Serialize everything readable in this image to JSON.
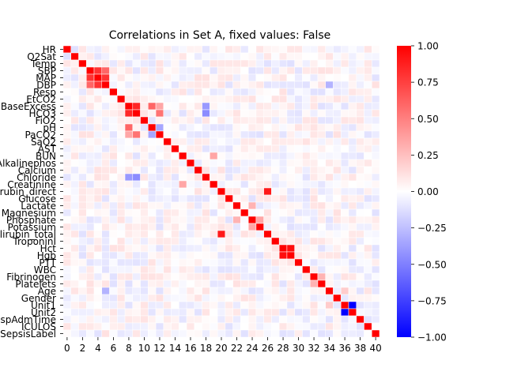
{
  "chart_data": {
    "type": "heatmap",
    "title": "Correlations in Set A, fixed values: False",
    "row_labels": [
      "HR",
      "O2Sat",
      "Temp",
      "SBP",
      "MAP",
      "DBP",
      "Resp",
      "EtCO2",
      "BaseExcess",
      "HCO3",
      "FiO2",
      "pH",
      "PaCO2",
      "SaO2",
      "AST",
      "BUN",
      "Alkalinephos",
      "Calcium",
      "Chloride",
      "Creatinine",
      "Bilirubin_direct",
      "Glucose",
      "Lactate",
      "Magnesium",
      "Phosphate",
      "Potassium",
      "Bilirubin_total",
      "TroponinI",
      "Hct",
      "Hgb",
      "PTT",
      "WBC",
      "Fibrinogen",
      "Platelets",
      "Age",
      "Gender",
      "Unit1",
      "Unit2",
      "HospAdmTime",
      "ICULOS",
      "SepsisLabel"
    ],
    "x_tick_labels": [
      "0",
      "2",
      "4",
      "6",
      "8",
      "10",
      "12",
      "14",
      "16",
      "18",
      "20",
      "22",
      "24",
      "26",
      "28",
      "30",
      "32",
      "34",
      "36",
      "38",
      "40"
    ],
    "colorbar_ticks": [
      "1.00",
      "0.75",
      "0.50",
      "0.25",
      "0.00",
      "−0.25",
      "−0.50",
      "−0.75",
      "−1.00"
    ],
    "colorbar_values": [
      1.0,
      0.75,
      0.5,
      0.25,
      0.0,
      -0.25,
      -0.5,
      -0.75,
      -1.0
    ],
    "vmin": -1.0,
    "vmax": 1.0,
    "colormap": "bwr",
    "colors": {
      "negative": "#0000ff",
      "zero": "#ffffff",
      "positive": "#ff0000"
    },
    "notable_correlations": [
      {
        "a": 3,
        "b": 4,
        "value": 0.8
      },
      {
        "a": 3,
        "b": 5,
        "value": 0.6
      },
      {
        "a": 4,
        "b": 5,
        "value": 0.8
      },
      {
        "a": 8,
        "b": 9,
        "value": 0.85
      },
      {
        "a": 8,
        "b": 11,
        "value": 0.6
      },
      {
        "a": 8,
        "b": 12,
        "value": 0.35
      },
      {
        "a": 9,
        "b": 12,
        "value": 0.55
      },
      {
        "a": 11,
        "b": 12,
        "value": -0.35
      },
      {
        "a": 8,
        "b": 18,
        "value": -0.4
      },
      {
        "a": 9,
        "b": 18,
        "value": -0.45
      },
      {
        "a": 15,
        "b": 19,
        "value": 0.35
      },
      {
        "a": 20,
        "b": 26,
        "value": 0.9
      },
      {
        "a": 22,
        "b": 24,
        "value": 0.3
      },
      {
        "a": 24,
        "b": 25,
        "value": 0.35
      },
      {
        "a": 28,
        "b": 29,
        "value": 0.95
      },
      {
        "a": 32,
        "b": 33,
        "value": 0.3
      },
      {
        "a": 36,
        "b": 37,
        "value": -1.0
      },
      {
        "a": 34,
        "b": 36,
        "value": 0.2
      },
      {
        "a": 5,
        "b": 34,
        "value": -0.3
      }
    ]
  }
}
